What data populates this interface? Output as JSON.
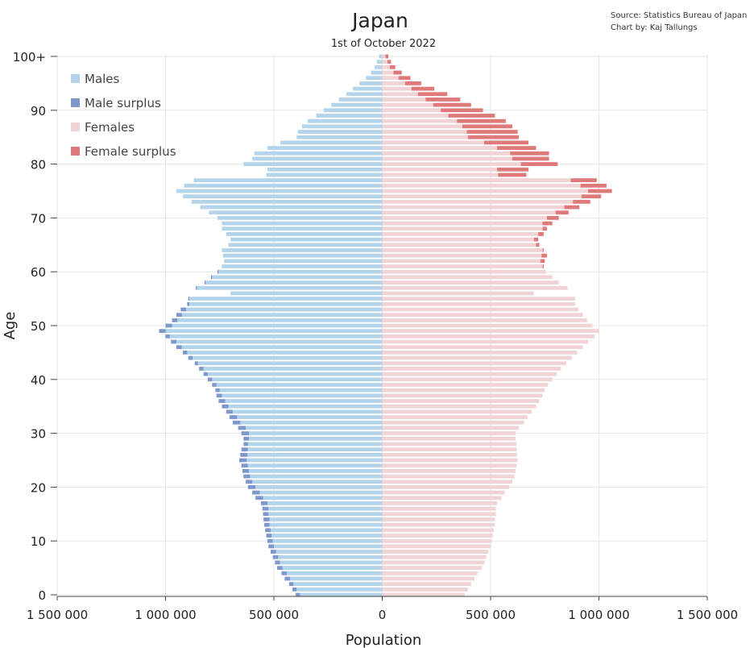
{
  "chart_data": {
    "type": "bar",
    "orientation": "horizontal",
    "title": "Japan",
    "subtitle": "1st of October 2022",
    "source_lines": [
      "Source: Statistics Bureau of Japan",
      "Chart by: Kaj Tallungs"
    ],
    "xlabel": "Population",
    "ylabel": "Age",
    "xlim": [
      -1500000,
      1500000
    ],
    "ylim": [
      0,
      100
    ],
    "x_ticks": [
      -1500000,
      -1000000,
      -500000,
      0,
      500000,
      1000000,
      1500000
    ],
    "x_tick_labels": [
      "1 500 000",
      "1 000 000",
      "500 000",
      "0",
      "500 000",
      "1 000 000",
      "1 500 000"
    ],
    "y_ticks": [
      0,
      10,
      20,
      30,
      40,
      50,
      60,
      70,
      80,
      90,
      100
    ],
    "y_tick_labels": [
      "0",
      "10",
      "20",
      "30",
      "40",
      "50",
      "60",
      "70",
      "80",
      "90",
      "100+"
    ],
    "grid": true,
    "legend_position": "top-left",
    "legend": [
      {
        "key": "males",
        "label": "Males",
        "color": "#b4d4eb"
      },
      {
        "key": "male_surplus",
        "label": "Male surplus",
        "color": "#7f98cc"
      },
      {
        "key": "females",
        "label": "Females",
        "color": "#f0d3d5"
      },
      {
        "key": "female_surplus",
        "label": "Female surplus",
        "color": "#df7a7a"
      }
    ],
    "ages": [
      0,
      1,
      2,
      3,
      4,
      5,
      6,
      7,
      8,
      9,
      10,
      11,
      12,
      13,
      14,
      15,
      16,
      17,
      18,
      19,
      20,
      21,
      22,
      23,
      24,
      25,
      26,
      27,
      28,
      29,
      30,
      31,
      32,
      33,
      34,
      35,
      36,
      37,
      38,
      39,
      40,
      41,
      42,
      43,
      44,
      45,
      46,
      47,
      48,
      49,
      50,
      51,
      52,
      53,
      54,
      55,
      56,
      57,
      58,
      59,
      60,
      61,
      62,
      63,
      64,
      65,
      66,
      67,
      68,
      69,
      70,
      71,
      72,
      73,
      74,
      75,
      76,
      77,
      78,
      79,
      80,
      81,
      82,
      83,
      84,
      85,
      86,
      87,
      88,
      89,
      90,
      91,
      92,
      93,
      94,
      95,
      96,
      97,
      98,
      99,
      100
    ],
    "series": [
      {
        "name": "Males",
        "values": [
          400000,
          415000,
          430000,
          450000,
          465000,
          485000,
          495000,
          505000,
          515000,
          525000,
          530000,
          535000,
          540000,
          545000,
          548000,
          550000,
          553000,
          560000,
          585000,
          600000,
          620000,
          630000,
          640000,
          645000,
          650000,
          660000,
          655000,
          650000,
          640000,
          640000,
          650000,
          665000,
          690000,
          705000,
          720000,
          740000,
          755000,
          765000,
          770000,
          785000,
          805000,
          825000,
          845000,
          865000,
          895000,
          920000,
          950000,
          975000,
          1000000,
          1030000,
          1000000,
          970000,
          950000,
          930000,
          900000,
          895000,
          700000,
          860000,
          820000,
          790000,
          760000,
          740000,
          730000,
          735000,
          740000,
          710000,
          700000,
          720000,
          740000,
          740000,
          760000,
          800000,
          840000,
          880000,
          920000,
          950000,
          915000,
          870000,
          535000,
          530000,
          640000,
          600000,
          590000,
          530000,
          470000,
          395000,
          390000,
          370000,
          345000,
          305000,
          270000,
          235000,
          200000,
          165000,
          135000,
          105000,
          75000,
          52000,
          35000,
          25000,
          15000
        ]
      },
      {
        "name": "Females",
        "values": [
          380000,
          395000,
          410000,
          425000,
          440000,
          460000,
          472000,
          480000,
          490000,
          500000,
          505000,
          510000,
          515000,
          520000,
          520000,
          525000,
          525000,
          530000,
          550000,
          565000,
          585000,
          600000,
          610000,
          615000,
          620000,
          625000,
          622000,
          620000,
          620000,
          615000,
          615000,
          630000,
          655000,
          670000,
          690000,
          710000,
          725000,
          740000,
          750000,
          765000,
          785000,
          805000,
          825000,
          850000,
          875000,
          900000,
          925000,
          950000,
          980000,
          1000000,
          970000,
          945000,
          925000,
          905000,
          890000,
          890000,
          700000,
          855000,
          815000,
          785000,
          755000,
          745000,
          750000,
          760000,
          745000,
          725000,
          720000,
          745000,
          760000,
          785000,
          815000,
          860000,
          910000,
          960000,
          1010000,
          1060000,
          1035000,
          990000,
          665000,
          675000,
          810000,
          770000,
          770000,
          710000,
          675000,
          630000,
          625000,
          600000,
          570000,
          520000,
          465000,
          410000,
          360000,
          300000,
          240000,
          180000,
          130000,
          90000,
          60000,
          40000,
          28000
        ]
      }
    ]
  }
}
